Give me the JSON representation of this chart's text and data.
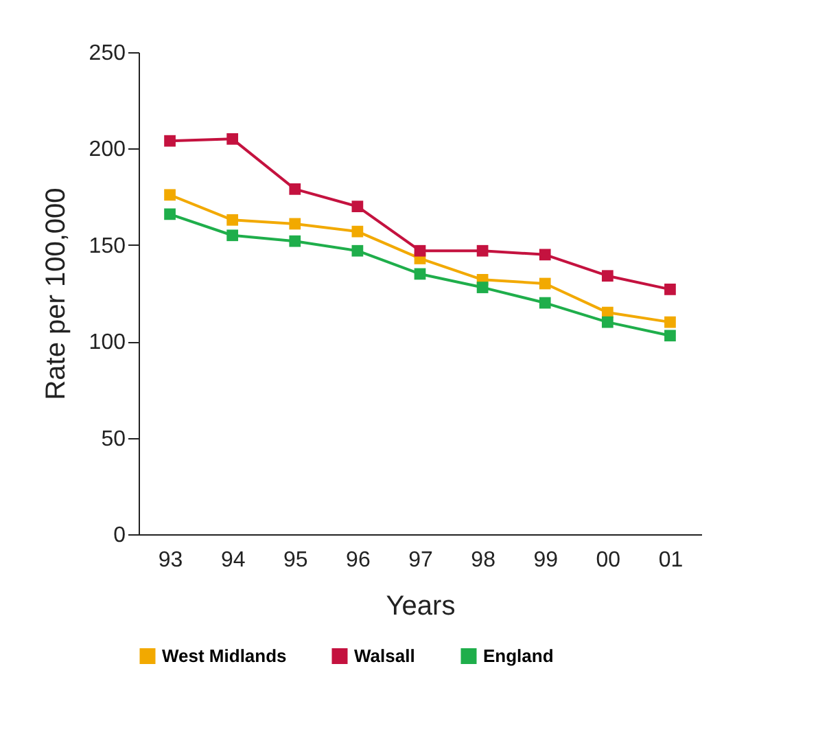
{
  "chart_data": {
    "type": "line",
    "xlabel": "Years",
    "ylabel": "Rate per 100,000",
    "categories": [
      "93",
      "94",
      "95",
      "96",
      "97",
      "98",
      "99",
      "00",
      "01"
    ],
    "series": [
      {
        "name": "West Midlands",
        "color": "#f2a900",
        "values": [
          176,
          163,
          161,
          157,
          143,
          132,
          130,
          115,
          110
        ]
      },
      {
        "name": "Walsall",
        "color": "#c4123f",
        "values": [
          204,
          205,
          179,
          170,
          147,
          147,
          145,
          134,
          127
        ]
      },
      {
        "name": "England",
        "color": "#1fae4b",
        "values": [
          166,
          155,
          152,
          147,
          135,
          128,
          120,
          110,
          103
        ]
      }
    ],
    "ylim": [
      0,
      250
    ],
    "yticks": [
      0,
      50,
      100,
      150,
      200,
      250
    ],
    "grid": false,
    "legend": "bottom",
    "marker": "square",
    "line_style": "solid"
  }
}
